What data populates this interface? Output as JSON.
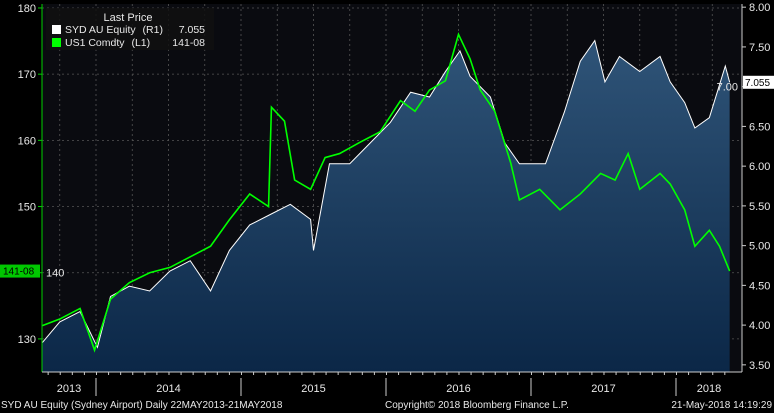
{
  "legend": {
    "title": "Last Price",
    "items": [
      {
        "name": "SYD AU Equity",
        "axis": "(R1)",
        "value": "7.055",
        "color": "#ffffff"
      },
      {
        "name": "US1 Comdty",
        "axis": "(L1)",
        "value": "141-08",
        "color": "#00ff00"
      }
    ]
  },
  "footer": {
    "left": "SYD AU Equity (Sydney Airport)  Daily 22MAY2013-21MAY2018",
    "center": "Copyright© 2018 Bloomberg Finance L.P.",
    "right": "21-May-2018 14:19:29"
  },
  "chart_data": {
    "type": "line",
    "title": "",
    "x_tick_labels": [
      "2013",
      "2014",
      "2015",
      "2016",
      "2017",
      "2018"
    ],
    "xlim": [
      2013.63,
      2018.39
    ],
    "left_axis": {
      "ticks": [
        "130",
        "140",
        "150",
        "160",
        "170",
        "180"
      ],
      "tick_values": [
        130,
        140,
        150,
        160,
        170,
        180
      ],
      "ylim": [
        125,
        180.6
      ]
    },
    "right_axis": {
      "ticks": [
        "3.50",
        "4.00",
        "4.50",
        "5.00",
        "5.50",
        "6.00",
        "6.50",
        "7.00",
        "7.50",
        "8.00"
      ],
      "tick_values": [
        3.5,
        4,
        4.5,
        5,
        5.5,
        6,
        6.5,
        7,
        7.5,
        8
      ],
      "ylim": [
        3.41,
        8.04
      ]
    },
    "last_value_tags": {
      "left": "141-08",
      "right": "7.055"
    },
    "series": [
      {
        "name": "SYD AU Equity",
        "axis": "right",
        "color": "#ffffff",
        "filled": true,
        "points": [
          [
            2013.63,
            3.78
          ],
          [
            2013.75,
            4.04
          ],
          [
            2013.89,
            4.17
          ],
          [
            2014.01,
            3.72
          ],
          [
            2014.1,
            4.36
          ],
          [
            2014.23,
            4.49
          ],
          [
            2014.37,
            4.43
          ],
          [
            2014.51,
            4.68
          ],
          [
            2014.65,
            4.81
          ],
          [
            2014.79,
            4.43
          ],
          [
            2014.92,
            4.94
          ],
          [
            2015.06,
            5.26
          ],
          [
            2015.2,
            5.39
          ],
          [
            2015.34,
            5.52
          ],
          [
            2015.48,
            5.33
          ],
          [
            2015.5,
            4.94
          ],
          [
            2015.61,
            6.03
          ],
          [
            2015.75,
            6.03
          ],
          [
            2015.89,
            6.29
          ],
          [
            2016.03,
            6.55
          ],
          [
            2016.17,
            6.93
          ],
          [
            2016.3,
            6.87
          ],
          [
            2016.41,
            7.19
          ],
          [
            2016.51,
            7.45
          ],
          [
            2016.58,
            7.13
          ],
          [
            2016.72,
            6.87
          ],
          [
            2016.82,
            6.29
          ],
          [
            2016.92,
            6.03
          ],
          [
            2017.1,
            6.03
          ],
          [
            2017.23,
            6.68
          ],
          [
            2017.34,
            7.32
          ],
          [
            2017.44,
            7.58
          ],
          [
            2017.51,
            7.06
          ],
          [
            2017.61,
            7.38
          ],
          [
            2017.75,
            7.19
          ],
          [
            2017.89,
            7.38
          ],
          [
            2017.96,
            7.06
          ],
          [
            2018.06,
            6.8
          ],
          [
            2018.13,
            6.48
          ],
          [
            2018.23,
            6.61
          ],
          [
            2018.34,
            7.26
          ],
          [
            2018.37,
            7.055
          ]
        ]
      },
      {
        "name": "US1 Comdty",
        "axis": "left",
        "color": "#00ff00",
        "filled": false,
        "points": [
          [
            2013.63,
            132
          ],
          [
            2013.75,
            133
          ],
          [
            2013.89,
            134.6
          ],
          [
            2013.99,
            128.3
          ],
          [
            2014.1,
            136
          ],
          [
            2014.23,
            138.5
          ],
          [
            2014.37,
            140
          ],
          [
            2014.51,
            140.8
          ],
          [
            2014.65,
            142.4
          ],
          [
            2014.79,
            144
          ],
          [
            2014.92,
            148
          ],
          [
            2015.06,
            151.9
          ],
          [
            2015.19,
            150
          ],
          [
            2015.21,
            165
          ],
          [
            2015.3,
            162.9
          ],
          [
            2015.37,
            154
          ],
          [
            2015.48,
            152.6
          ],
          [
            2015.58,
            157.4
          ],
          [
            2015.68,
            158
          ],
          [
            2015.82,
            159.7
          ],
          [
            2015.96,
            161.3
          ],
          [
            2016.1,
            166
          ],
          [
            2016.2,
            164.4
          ],
          [
            2016.3,
            167.6
          ],
          [
            2016.41,
            169
          ],
          [
            2016.5,
            176
          ],
          [
            2016.58,
            172.3
          ],
          [
            2016.65,
            167.6
          ],
          [
            2016.75,
            164.4
          ],
          [
            2016.86,
            156.6
          ],
          [
            2016.92,
            151
          ],
          [
            2017.06,
            152.6
          ],
          [
            2017.2,
            149.5
          ],
          [
            2017.34,
            151.9
          ],
          [
            2017.48,
            155
          ],
          [
            2017.58,
            154
          ],
          [
            2017.67,
            158
          ],
          [
            2017.75,
            152.6
          ],
          [
            2017.89,
            155
          ],
          [
            2017.96,
            153.4
          ],
          [
            2018.06,
            149.5
          ],
          [
            2018.13,
            144
          ],
          [
            2018.23,
            146.4
          ],
          [
            2018.3,
            144
          ],
          [
            2018.37,
            140.25
          ]
        ]
      }
    ]
  }
}
